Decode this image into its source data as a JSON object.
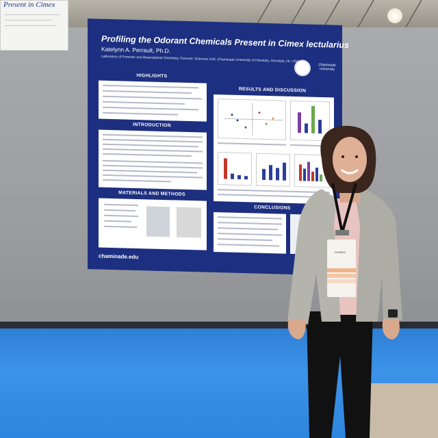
{
  "neighbor_sign": {
    "text": "Present in Cimex"
  },
  "poster": {
    "title": "Profiling the Odorant Chemicals Present in Cimex lectularius",
    "author": "Katelynn A. Perrault, Ph.D.",
    "affiliation": "Laboratory of Forensic and Bioanalytical Chemistry, Forensic Sciences Unit, Chaminade University of Honolulu, Honolulu, HI, USA",
    "university": "Chaminade University",
    "sections": {
      "highlights": "HIGHLIGHTS",
      "introduction": "INTRODUCTION",
      "materials": "MATERIALS AND METHODS",
      "results": "RESULTS AND DISCUSSION",
      "conclusions": "CONCLUSIONS"
    },
    "website": "chaminade.edu",
    "bar_chart_colors": [
      "#c0392b",
      "#2c3e9c",
      "#7b3fa0",
      "#6aa84f",
      "#e08e2b"
    ]
  },
  "badge": {
    "text": "WOMEN"
  }
}
